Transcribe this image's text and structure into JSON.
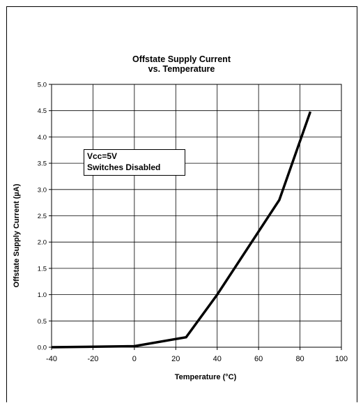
{
  "chart_data": {
    "type": "line",
    "title_lines": [
      "Offstate Supply Current",
      "vs. Temperature"
    ],
    "xlabel": "Temperature (°C)",
    "ylabel": "Offstate Supply Current (µA)",
    "xlim": [
      -40,
      100
    ],
    "ylim": [
      0,
      5.0
    ],
    "x_ticks": [
      "-40",
      "-20",
      "0",
      "20",
      "40",
      "60",
      "80",
      "100"
    ],
    "y_ticks": [
      "0.0",
      "0.5",
      "1.0",
      "1.5",
      "2.0",
      "2.5",
      "3.0",
      "3.5",
      "4.0",
      "4.5",
      "5.0"
    ],
    "grid": true,
    "annotation_lines": [
      "Vcc=5V",
      "Switches Disabled"
    ],
    "series": [
      {
        "x": [
          -40,
          0,
          25,
          40,
          70,
          85
        ],
        "y": [
          0.0,
          0.02,
          0.19,
          1.0,
          2.8,
          4.48
        ],
        "color": "#000000"
      }
    ]
  }
}
